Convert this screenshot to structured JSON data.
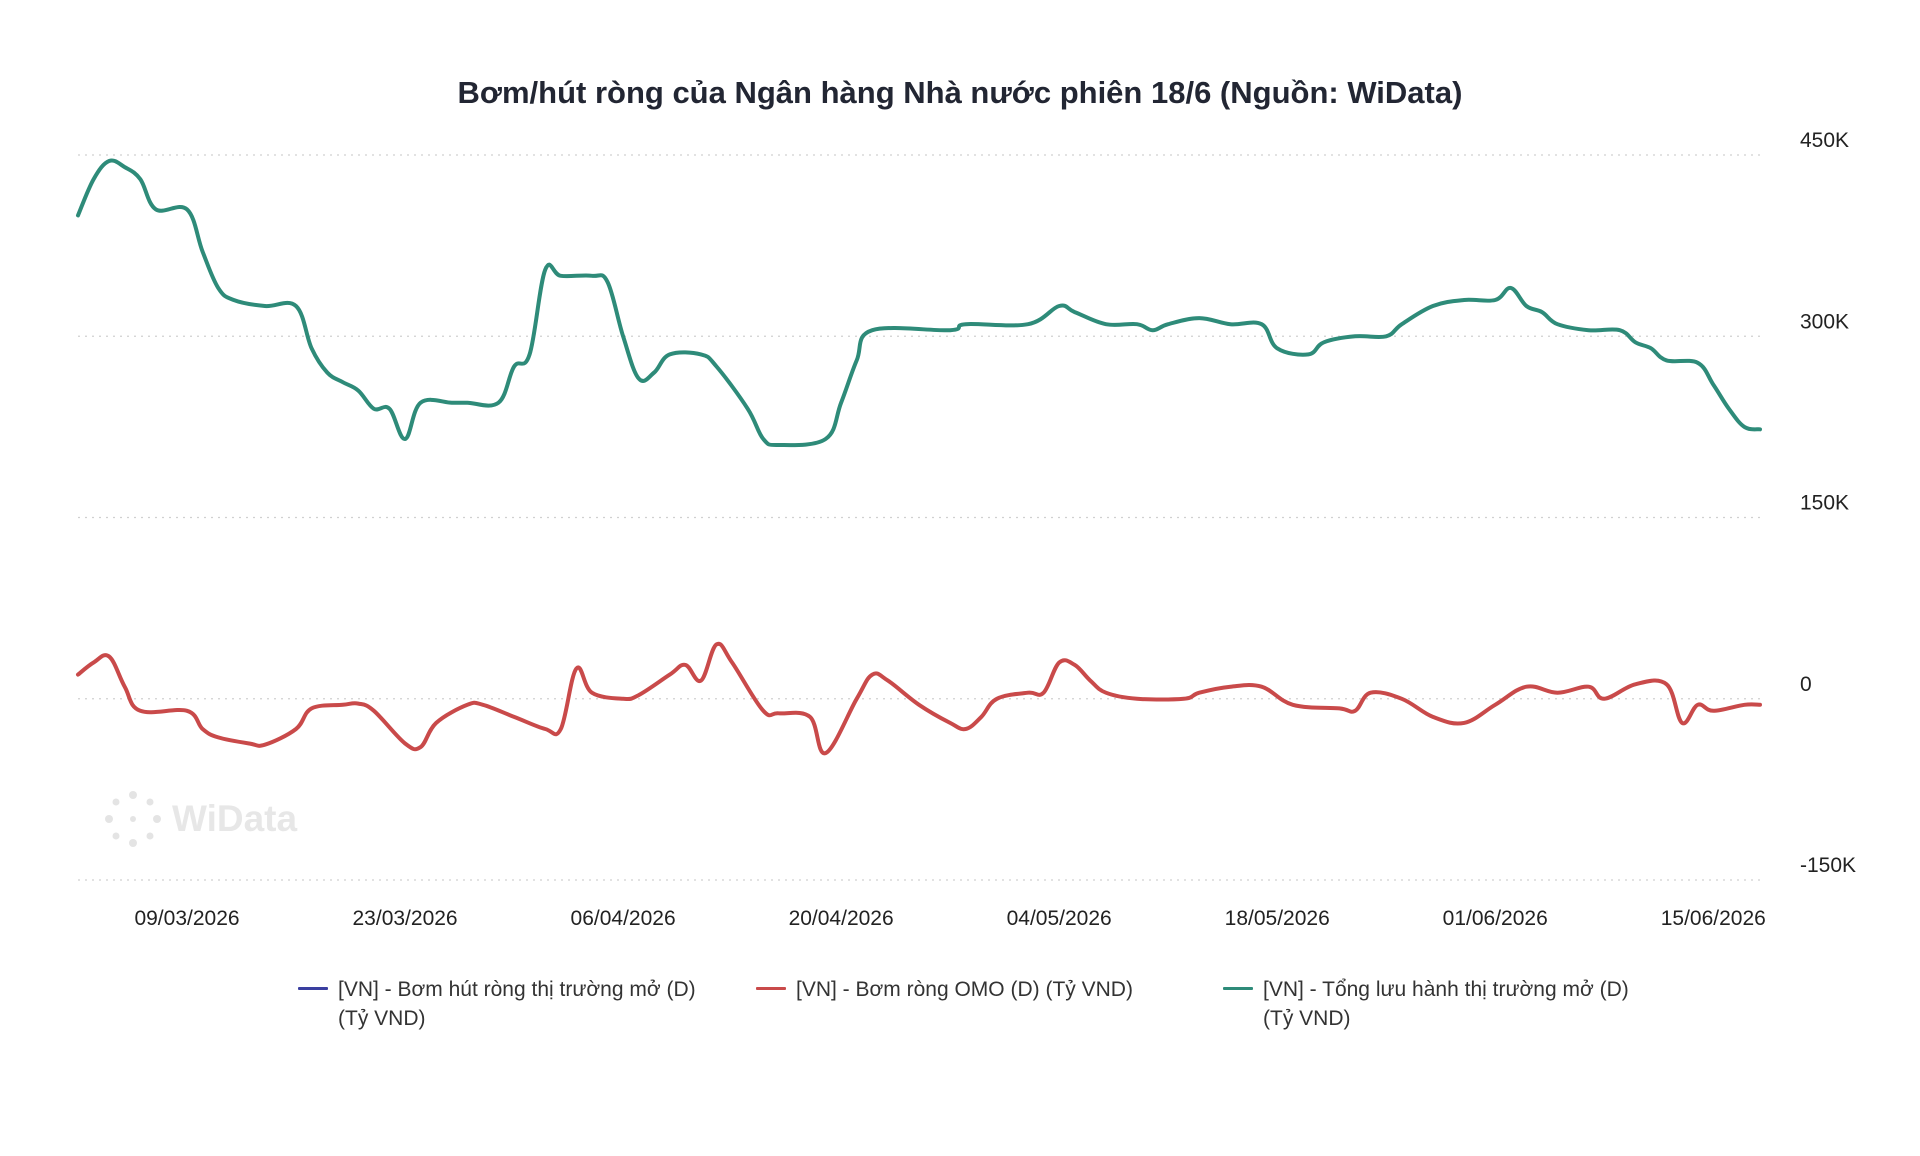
{
  "chart_data": {
    "type": "line",
    "title": "Bơm/hút ròng của Ngân hàng Nhà nước phiên 18/6 (Nguồn: WiData)",
    "xlabel": "",
    "ylabel": "",
    "x_range": [
      "2026-03-02",
      "2026-06-18"
    ],
    "x_ticks": [
      "09/03/2026",
      "23/03/2026",
      "06/04/2026",
      "20/04/2026",
      "04/05/2026",
      "18/05/2026",
      "01/06/2026",
      "15/06/2026"
    ],
    "y_ticks": [
      "450K",
      "300K",
      "150K",
      "0",
      "-150K"
    ],
    "ylim": [
      -150000,
      450000
    ],
    "y_axis_position": "right",
    "grid": true,
    "legend_position": "bottom",
    "series": [
      {
        "name": "[VN] - Bơm hút ròng thị trường mở (D) (Tỷ VND)",
        "color": "#3a3fa0",
        "points": []
      },
      {
        "name": "[VN] - Bơm ròng OMO (D) (Tỷ VND)",
        "color": "#c94a4a",
        "points": [
          [
            "2026-03-02",
            20000
          ],
          [
            "2026-03-03",
            30000
          ],
          [
            "2026-03-04",
            35000
          ],
          [
            "2026-03-05",
            10000
          ],
          [
            "2026-03-06",
            -10000
          ],
          [
            "2026-03-09",
            -10000
          ],
          [
            "2026-03-10",
            -25000
          ],
          [
            "2026-03-11",
            -32000
          ],
          [
            "2026-03-13",
            -37000
          ],
          [
            "2026-03-14",
            -38000
          ],
          [
            "2026-03-16",
            -25000
          ],
          [
            "2026-03-17",
            -8000
          ],
          [
            "2026-03-19",
            -5000
          ],
          [
            "2026-03-20",
            -4000
          ],
          [
            "2026-03-21",
            -10000
          ],
          [
            "2026-03-23",
            -37000
          ],
          [
            "2026-03-24",
            -40000
          ],
          [
            "2026-03-25",
            -20000
          ],
          [
            "2026-03-27",
            -5000
          ],
          [
            "2026-03-28",
            -5000
          ],
          [
            "2026-03-30",
            -15000
          ],
          [
            "2026-04-01",
            -25000
          ],
          [
            "2026-04-02",
            -25000
          ],
          [
            "2026-04-03",
            25000
          ],
          [
            "2026-04-04",
            5000
          ],
          [
            "2026-04-06",
            0
          ],
          [
            "2026-04-07",
            3000
          ],
          [
            "2026-04-09",
            20000
          ],
          [
            "2026-04-10",
            28000
          ],
          [
            "2026-04-11",
            15000
          ],
          [
            "2026-04-12",
            45000
          ],
          [
            "2026-04-13",
            30000
          ],
          [
            "2026-04-15",
            -10000
          ],
          [
            "2026-04-16",
            -12000
          ],
          [
            "2026-04-18",
            -15000
          ],
          [
            "2026-04-19",
            -45000
          ],
          [
            "2026-04-21",
            0
          ],
          [
            "2026-04-22",
            20000
          ],
          [
            "2026-04-23",
            15000
          ],
          [
            "2026-04-25",
            -5000
          ],
          [
            "2026-04-27",
            -20000
          ],
          [
            "2026-04-28",
            -25000
          ],
          [
            "2026-04-29",
            -15000
          ],
          [
            "2026-04-30",
            0
          ],
          [
            "2026-05-02",
            5000
          ],
          [
            "2026-05-03",
            5000
          ],
          [
            "2026-05-04",
            30000
          ],
          [
            "2026-05-05",
            28000
          ],
          [
            "2026-05-06",
            15000
          ],
          [
            "2026-05-07",
            5000
          ],
          [
            "2026-05-09",
            0
          ],
          [
            "2026-05-12",
            0
          ],
          [
            "2026-05-13",
            5000
          ],
          [
            "2026-05-15",
            10000
          ],
          [
            "2026-05-17",
            10000
          ],
          [
            "2026-05-19",
            -5000
          ],
          [
            "2026-05-22",
            -8000
          ],
          [
            "2026-05-23",
            -10000
          ],
          [
            "2026-05-24",
            5000
          ],
          [
            "2026-05-26",
            0
          ],
          [
            "2026-05-28",
            -15000
          ],
          [
            "2026-05-30",
            -20000
          ],
          [
            "2026-06-01",
            -5000
          ],
          [
            "2026-06-03",
            10000
          ],
          [
            "2026-06-05",
            5000
          ],
          [
            "2026-06-07",
            10000
          ],
          [
            "2026-06-08",
            0
          ],
          [
            "2026-06-10",
            12000
          ],
          [
            "2026-06-12",
            12000
          ],
          [
            "2026-06-13",
            -20000
          ],
          [
            "2026-06-14",
            -5000
          ],
          [
            "2026-06-15",
            -10000
          ],
          [
            "2026-06-17",
            -5000
          ],
          [
            "2026-06-18",
            -5000
          ]
        ]
      },
      {
        "name": "[VN] - Tổng lưu hành thị trường mở (D) (Tỷ VND)",
        "color": "#2e8b79",
        "points": [
          [
            "2026-03-02",
            400000
          ],
          [
            "2026-03-03",
            430000
          ],
          [
            "2026-03-04",
            445000
          ],
          [
            "2026-03-05",
            440000
          ],
          [
            "2026-03-06",
            430000
          ],
          [
            "2026-03-07",
            405000
          ],
          [
            "2026-03-09",
            405000
          ],
          [
            "2026-03-10",
            370000
          ],
          [
            "2026-03-11",
            340000
          ],
          [
            "2026-03-12",
            330000
          ],
          [
            "2026-03-14",
            325000
          ],
          [
            "2026-03-16",
            325000
          ],
          [
            "2026-03-17",
            290000
          ],
          [
            "2026-03-18",
            270000
          ],
          [
            "2026-03-19",
            262000
          ],
          [
            "2026-03-20",
            255000
          ],
          [
            "2026-03-21",
            240000
          ],
          [
            "2026-03-22",
            240000
          ],
          [
            "2026-03-23",
            215000
          ],
          [
            "2026-03-24",
            245000
          ],
          [
            "2026-03-26",
            245000
          ],
          [
            "2026-03-27",
            245000
          ],
          [
            "2026-03-29",
            245000
          ],
          [
            "2026-03-30",
            275000
          ],
          [
            "2026-03-31",
            285000
          ],
          [
            "2026-04-01",
            355000
          ],
          [
            "2026-04-02",
            350000
          ],
          [
            "2026-04-04",
            350000
          ],
          [
            "2026-04-05",
            345000
          ],
          [
            "2026-04-06",
            300000
          ],
          [
            "2026-04-07",
            265000
          ],
          [
            "2026-04-08",
            270000
          ],
          [
            "2026-04-09",
            285000
          ],
          [
            "2026-04-11",
            285000
          ],
          [
            "2026-04-12",
            275000
          ],
          [
            "2026-04-14",
            240000
          ],
          [
            "2026-04-15",
            215000
          ],
          [
            "2026-04-16",
            210000
          ],
          [
            "2026-04-19",
            215000
          ],
          [
            "2026-04-20",
            245000
          ],
          [
            "2026-04-21",
            280000
          ],
          [
            "2026-04-22",
            305000
          ],
          [
            "2026-04-27",
            305000
          ],
          [
            "2026-04-28",
            310000
          ],
          [
            "2026-05-02",
            310000
          ],
          [
            "2026-05-04",
            325000
          ],
          [
            "2026-05-05",
            320000
          ],
          [
            "2026-05-07",
            310000
          ],
          [
            "2026-05-09",
            310000
          ],
          [
            "2026-05-10",
            305000
          ],
          [
            "2026-05-11",
            310000
          ],
          [
            "2026-05-13",
            315000
          ],
          [
            "2026-05-15",
            310000
          ],
          [
            "2026-05-17",
            310000
          ],
          [
            "2026-05-18",
            290000
          ],
          [
            "2026-05-20",
            285000
          ],
          [
            "2026-05-21",
            295000
          ],
          [
            "2026-05-23",
            300000
          ],
          [
            "2026-05-25",
            300000
          ],
          [
            "2026-05-26",
            310000
          ],
          [
            "2026-05-28",
            325000
          ],
          [
            "2026-05-30",
            330000
          ],
          [
            "2026-06-01",
            330000
          ],
          [
            "2026-06-02",
            340000
          ],
          [
            "2026-06-03",
            325000
          ],
          [
            "2026-06-04",
            320000
          ],
          [
            "2026-06-05",
            310000
          ],
          [
            "2026-06-07",
            305000
          ],
          [
            "2026-06-09",
            305000
          ],
          [
            "2026-06-10",
            295000
          ],
          [
            "2026-06-11",
            290000
          ],
          [
            "2026-06-12",
            280000
          ],
          [
            "2026-06-14",
            278000
          ],
          [
            "2026-06-15",
            260000
          ],
          [
            "2026-06-16",
            240000
          ],
          [
            "2026-06-17",
            225000
          ],
          [
            "2026-06-18",
            223000
          ]
        ]
      }
    ],
    "watermark": "WiData"
  }
}
